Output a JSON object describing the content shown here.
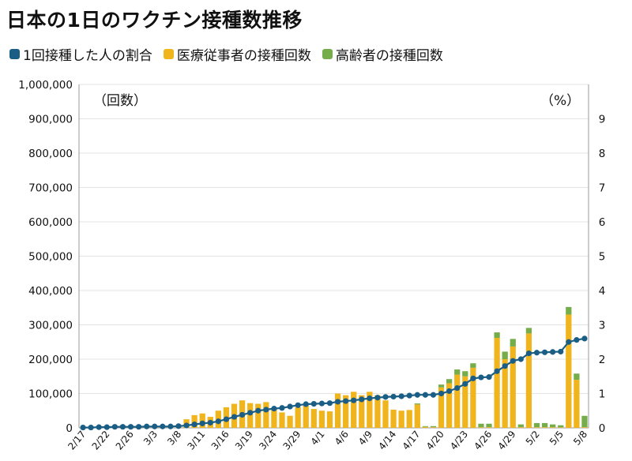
{
  "title": "日本の1日のワクチン接種数推移",
  "legend": [
    {
      "label": "1回接種した人の割合",
      "color": "#1a5e86"
    },
    {
      "label": "医療従事者の接種回数",
      "color": "#f0b41c"
    },
    {
      "label": "高齢者の接種回数",
      "color": "#74ad4a"
    }
  ],
  "chart_data": {
    "type": "bar",
    "left_unit": "（回数）",
    "right_unit": "（%）",
    "y_left_lim": [
      0,
      1000000
    ],
    "y_left_ticks": [
      "0",
      "100,000",
      "200,000",
      "300,000",
      "400,000",
      "500,000",
      "600,000",
      "700,000",
      "800,000",
      "900,000",
      "1,000,000"
    ],
    "y_right_lim": [
      0,
      10
    ],
    "y_right_ticks": [
      "0",
      "1",
      "2",
      "3",
      "4",
      "5",
      "6",
      "7",
      "8",
      "9"
    ],
    "x_tick_labels": [
      "2/17",
      "2/22",
      "2/26",
      "3/3",
      "3/8",
      "3/11",
      "3/16",
      "3/19",
      "3/24",
      "3/29",
      "4/1",
      "4/6",
      "4/9",
      "4/14",
      "4/17",
      "4/20",
      "4/23",
      "4/26",
      "4/29",
      "5/2",
      "5/5",
      "5/8"
    ],
    "x_tick_index": [
      0,
      3,
      6,
      9,
      12,
      15,
      18,
      21,
      24,
      27,
      30,
      33,
      36,
      39,
      42,
      45,
      48,
      51,
      54,
      57,
      60,
      63
    ],
    "n_days": 64,
    "series": [
      {
        "name": "医療従事者の接種回数",
        "color": "#f0b41c",
        "values": [
          2000,
          1000,
          1500,
          5000,
          5000,
          7000,
          3000,
          2000,
          3000,
          2000,
          2000,
          2000,
          3000,
          25000,
          37000,
          42000,
          32000,
          50000,
          60000,
          70000,
          80000,
          72000,
          70000,
          75000,
          57000,
          45000,
          35000,
          60000,
          65000,
          55000,
          50000,
          48000,
          100000,
          95000,
          105000,
          95000,
          105000,
          95000,
          80000,
          53000,
          50000,
          52000,
          68000,
          3000,
          2000,
          118000,
          130000,
          155000,
          150000,
          175000,
          2000,
          2000,
          262000,
          200000,
          237000,
          2000,
          275000,
          2000,
          2000,
          2000,
          1500,
          330000,
          140000,
          2000
        ]
      },
      {
        "name": "高齢者の接種回数",
        "color": "#74ad4a",
        "values": [
          0,
          0,
          0,
          0,
          0,
          0,
          0,
          0,
          0,
          0,
          0,
          0,
          0,
          0,
          0,
          0,
          0,
          0,
          0,
          0,
          0,
          0,
          0,
          0,
          0,
          0,
          0,
          0,
          0,
          0,
          0,
          0,
          0,
          0,
          0,
          0,
          0,
          0,
          0,
          0,
          0,
          0,
          3000,
          2000,
          3000,
          8000,
          12000,
          15000,
          15000,
          13000,
          10000,
          10000,
          16000,
          22000,
          22000,
          8000,
          16000,
          12000,
          12000,
          8000,
          6000,
          22000,
          18000,
          33000
        ]
      },
      {
        "name": "1回接種した人の割合",
        "color": "#1a5e86",
        "values": [
          0.01,
          0.01,
          0.02,
          0.02,
          0.03,
          0.03,
          0.03,
          0.03,
          0.04,
          0.04,
          0.04,
          0.04,
          0.05,
          0.07,
          0.1,
          0.13,
          0.15,
          0.19,
          0.25,
          0.32,
          0.38,
          0.44,
          0.5,
          0.53,
          0.56,
          0.58,
          0.62,
          0.66,
          0.69,
          0.7,
          0.71,
          0.72,
          0.76,
          0.78,
          0.8,
          0.83,
          0.86,
          0.88,
          0.9,
          0.91,
          0.92,
          0.94,
          0.96,
          0.96,
          0.96,
          1.0,
          1.07,
          1.16,
          1.28,
          1.44,
          1.47,
          1.48,
          1.65,
          1.8,
          1.95,
          2.0,
          2.17,
          2.19,
          2.2,
          2.21,
          2.22,
          2.5,
          2.56,
          2.6
        ]
      }
    ]
  }
}
